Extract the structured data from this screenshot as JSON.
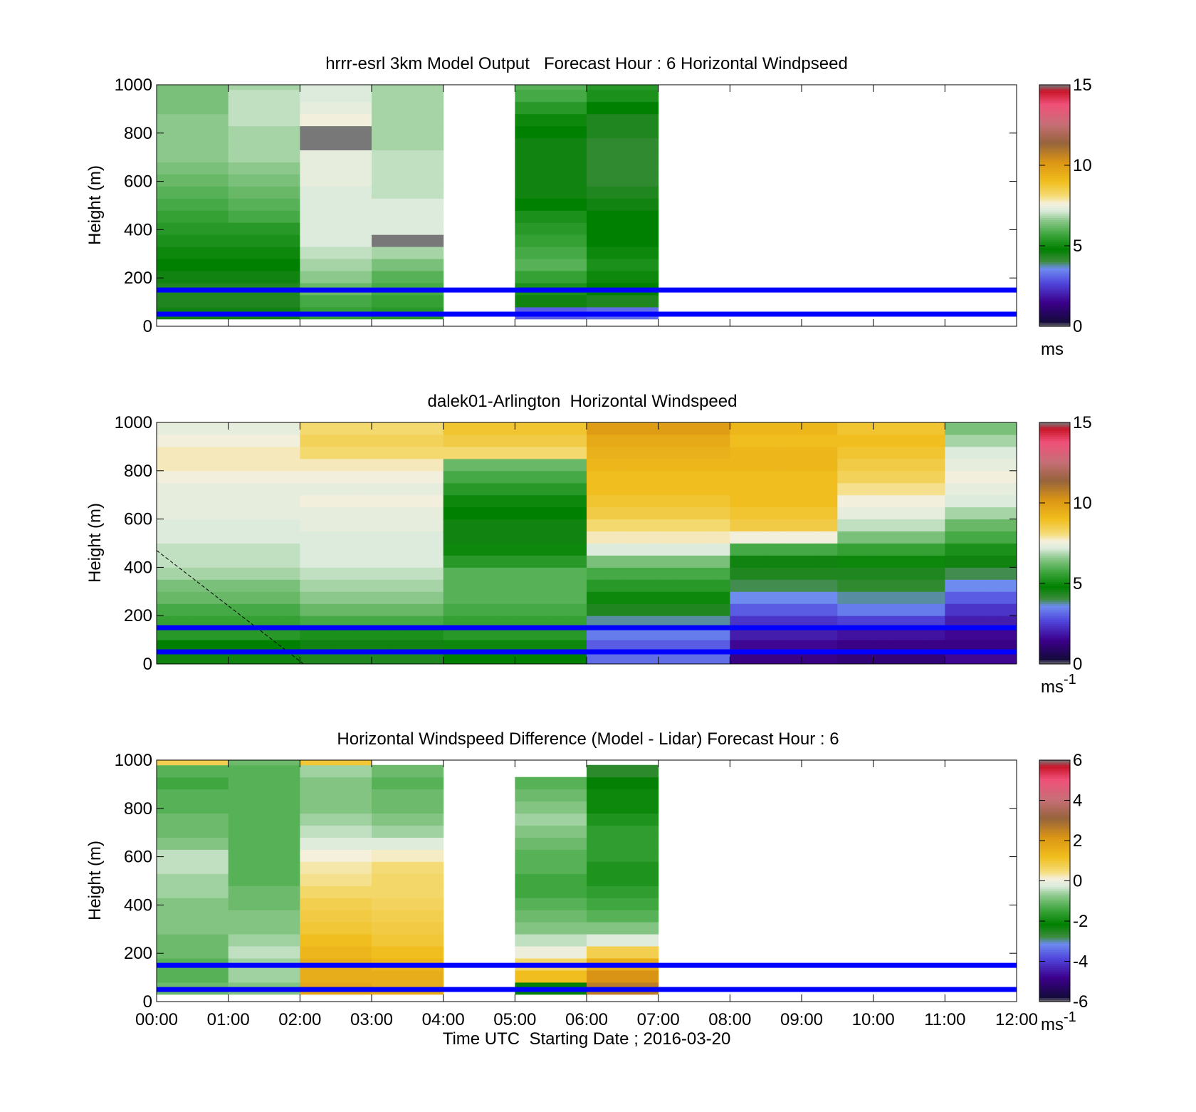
{
  "chart_data": [
    {
      "type": "heatmap",
      "title": "hrrr-esrl 3km Model Output   Forecast Hour : 6 Horizontal Windpseed",
      "xlabel": "",
      "ylabel": "Height (m)",
      "xlim": [
        "00:00",
        "12:00"
      ],
      "ylim": [
        0,
        1000
      ],
      "x_ticks": [
        "00:00",
        "01:00",
        "02:00",
        "03:00",
        "04:00",
        "05:00",
        "06:00",
        "07:00",
        "08:00",
        "09:00",
        "10:00",
        "11:00",
        "12:00"
      ],
      "y_ticks": [
        0,
        200,
        400,
        600,
        800,
        1000
      ],
      "colorbar": {
        "min": 0,
        "max": 15,
        "ticks": [
          0,
          5,
          10,
          15
        ],
        "unit": "ms",
        "unit_sup": ""
      },
      "reference_lines_m": [
        150,
        50
      ],
      "reference_line_color": "#0000ff",
      "cell_hours": 1,
      "height_bottom_m": 30,
      "height_step_m": 50,
      "columns": [
        {
          "start_hour": 0,
          "values": [
            4.6,
            4.4,
            4.4,
            4.6,
            4.8,
            5.0,
            5.2,
            5.4,
            5.6,
            5.8,
            6.0,
            6.2,
            6.4,
            6.6,
            6.6,
            6.6,
            6.6,
            6.4,
            6.4,
            6.4
          ]
        },
        {
          "start_hour": 1,
          "values": [
            4.6,
            4.4,
            4.4,
            4.6,
            4.8,
            5.0,
            5.2,
            5.4,
            5.8,
            6.0,
            6.2,
            6.4,
            6.6,
            6.8,
            6.8,
            6.8,
            7.0,
            7.0,
            7.0,
            6.8
          ]
        },
        {
          "start_hour": 2,
          "values": [
            5.6,
            5.8,
            6.2,
            6.6,
            6.8,
            7.0,
            7.2,
            7.2,
            7.2,
            7.2,
            7.2,
            7.4,
            7.4,
            7.4,
            15.0,
            15.0,
            7.6,
            7.4,
            7.2,
            7.2
          ]
        },
        {
          "start_hour": 3,
          "values": [
            5.4,
            5.6,
            5.8,
            6.0,
            6.4,
            6.8,
            15.0,
            7.2,
            7.2,
            7.2,
            7.0,
            7.0,
            7.0,
            7.0,
            6.8,
            6.8,
            6.8,
            6.8,
            6.8,
            6.8
          ]
        },
        {
          "start_hour": 5,
          "values": [
            3.0,
            4.6,
            5.2,
            5.6,
            6.0,
            5.8,
            5.6,
            5.4,
            5.2,
            4.8,
            4.6,
            4.6,
            4.6,
            4.6,
            4.6,
            4.8,
            5.0,
            5.4,
            5.8,
            6.0
          ]
        },
        {
          "start_hour": 6,
          "values": [
            3.2,
            4.4,
            4.8,
            5.0,
            5.2,
            5.0,
            4.8,
            4.8,
            4.8,
            4.6,
            4.4,
            4.2,
            4.2,
            4.2,
            4.2,
            4.4,
            4.4,
            4.8,
            5.2,
            5.4
          ]
        }
      ]
    },
    {
      "type": "heatmap",
      "title": "dalek01-Arlington  Horizontal Windspeed",
      "xlabel": "",
      "ylabel": "Height (m)",
      "xlim": [
        "00:00",
        "12:00"
      ],
      "ylim": [
        0,
        1000
      ],
      "x_ticks": [
        "00:00",
        "01:00",
        "02:00",
        "03:00",
        "04:00",
        "05:00",
        "06:00",
        "07:00",
        "08:00",
        "09:00",
        "10:00",
        "11:00",
        "12:00"
      ],
      "y_ticks": [
        0,
        200,
        400,
        600,
        800,
        1000
      ],
      "colorbar": {
        "min": 0,
        "max": 15,
        "ticks": [
          0,
          5,
          10,
          15
        ],
        "unit": "ms",
        "unit_sup": "-1"
      },
      "reference_lines_m": [
        150,
        50
      ],
      "reference_line_color": "#0000ff",
      "cell_hours": 0.25,
      "height_bottom_m": 0,
      "height_step_m": 50,
      "profiles": [
        {
          "until_hour": 2.0,
          "values": [
            4.6,
            4.8,
            5.4,
            5.6,
            5.8,
            6.2,
            6.4,
            6.8,
            7.0,
            7.0,
            7.2,
            7.2,
            7.4,
            7.4,
            7.4,
            7.6,
            7.8,
            7.8,
            7.6,
            7.4
          ]
        },
        {
          "until_hour": 4.0,
          "values": [
            4.4,
            4.6,
            5.2,
            5.8,
            6.2,
            6.6,
            6.8,
            7.0,
            7.2,
            7.2,
            7.2,
            7.4,
            7.4,
            7.6,
            7.4,
            7.6,
            7.8,
            8.2,
            8.4,
            8.2
          ]
        },
        {
          "until_hour": 6.0,
          "values": [
            4.8,
            5.0,
            5.4,
            5.6,
            5.8,
            6.0,
            6.0,
            6.0,
            5.4,
            5.0,
            4.6,
            4.6,
            4.8,
            5.0,
            5.4,
            5.8,
            6.2,
            8.2,
            8.6,
            8.8
          ]
        },
        {
          "until_hour": 8.0,
          "values": [
            3.2,
            3.0,
            3.4,
            3.8,
            4.4,
            5.0,
            5.4,
            5.8,
            6.4,
            7.2,
            7.8,
            8.2,
            8.6,
            8.8,
            9.0,
            9.0,
            9.2,
            9.4,
            9.6,
            10.0
          ]
        },
        {
          "until_hour": 9.5,
          "values": [
            1.4,
            1.6,
            2.0,
            2.4,
            3.0,
            3.6,
            4.0,
            4.4,
            4.6,
            5.8,
            7.6,
            8.6,
            8.8,
            9.0,
            9.0,
            9.0,
            9.2,
            9.2,
            9.0,
            9.2
          ]
        },
        {
          "until_hour": 11.0,
          "values": [
            1.2,
            1.4,
            1.8,
            2.6,
            3.4,
            3.8,
            4.2,
            4.4,
            5.0,
            5.6,
            6.4,
            7.0,
            7.4,
            7.6,
            8.0,
            8.4,
            8.6,
            8.8,
            9.0,
            8.8
          ]
        },
        {
          "until_hour": 11.95,
          "values": [
            1.6,
            1.4,
            1.6,
            2.0,
            2.4,
            3.0,
            3.6,
            4.0,
            4.6,
            5.2,
            5.8,
            6.2,
            6.8,
            7.2,
            7.4,
            7.6,
            7.4,
            7.2,
            6.8,
            6.4
          ]
        }
      ],
      "dashed_line": [
        [
          0.0,
          470
        ],
        [
          2.05,
          0
        ]
      ]
    },
    {
      "type": "heatmap",
      "title": "Horizontal Windspeed Difference (Model - Lidar) Forecast Hour : 6",
      "xlabel": "Time UTC  Starting Date ; 2016-03-20",
      "ylabel": "Height (m)",
      "xlim": [
        "00:00",
        "12:00"
      ],
      "ylim": [
        0,
        1000
      ],
      "x_ticks": [
        "00:00",
        "01:00",
        "02:00",
        "03:00",
        "04:00",
        "05:00",
        "06:00",
        "07:00",
        "08:00",
        "09:00",
        "10:00",
        "11:00",
        "12:00"
      ],
      "y_ticks": [
        0,
        200,
        400,
        600,
        800,
        1000
      ],
      "colorbar": {
        "min": -6,
        "max": 6,
        "ticks": [
          -6,
          -4,
          -2,
          0,
          2,
          4,
          6
        ],
        "unit": "ms",
        "unit_sup": "-1"
      },
      "reference_lines_m": [
        150,
        50
      ],
      "reference_line_color": "#0000ff",
      "cell_hours": 1,
      "height_bottom_m": 30,
      "height_step_m": 50,
      "columns": [
        {
          "start_hour": 0,
          "values": [
            -1.0,
            -1.2,
            -1.2,
            -1.0,
            -1.0,
            -0.8,
            -0.8,
            -0.8,
            -0.6,
            -0.6,
            -0.4,
            -0.4,
            -0.8,
            -1.0,
            -1.0,
            -1.2,
            -1.2,
            -1.4,
            -1.2,
            0.8
          ]
        },
        {
          "start_hour": 1,
          "values": [
            -0.8,
            -0.6,
            -0.6,
            -0.4,
            -0.6,
            -0.8,
            -0.8,
            -1.0,
            -1.0,
            -1.2,
            -1.2,
            -1.2,
            -1.2,
            -1.2,
            -1.2,
            -1.2,
            -1.2,
            -1.2,
            -1.2,
            -1.0
          ]
        },
        {
          "start_hour": 2,
          "values": [
            1.8,
            1.6,
            1.6,
            1.4,
            1.2,
            1.0,
            0.9,
            0.8,
            0.6,
            0.4,
            0.3,
            0.1,
            -0.2,
            -0.4,
            -0.6,
            -0.8,
            -0.8,
            -0.8,
            -0.6,
            1.0
          ]
        },
        {
          "start_hour": 3,
          "values": [
            1.6,
            1.6,
            1.4,
            1.2,
            1.0,
            0.9,
            0.8,
            0.7,
            0.6,
            0.6,
            0.5,
            0.2,
            -0.2,
            -0.6,
            -0.8,
            -1.0,
            -1.0,
            -1.2,
            -1.0
          ]
        },
        {
          "start_hour": 5,
          "values": [
            -2.2,
            1.2,
            0.6,
            0.0,
            -0.4,
            -0.8,
            -1.0,
            -1.2,
            -1.4,
            -1.4,
            -1.2,
            -1.2,
            -1.0,
            -0.8,
            -0.6,
            -0.8,
            -1.0,
            -1.2
          ]
        },
        {
          "start_hour": 6,
          "values": [
            2.6,
            2.2,
            1.6,
            0.8,
            -0.2,
            -0.8,
            -1.2,
            -1.4,
            -1.6,
            -1.8,
            -1.8,
            -1.6,
            -1.6,
            -1.6,
            -1.8,
            -2.0,
            -2.0,
            -2.2,
            -2.6
          ]
        }
      ]
    }
  ]
}
